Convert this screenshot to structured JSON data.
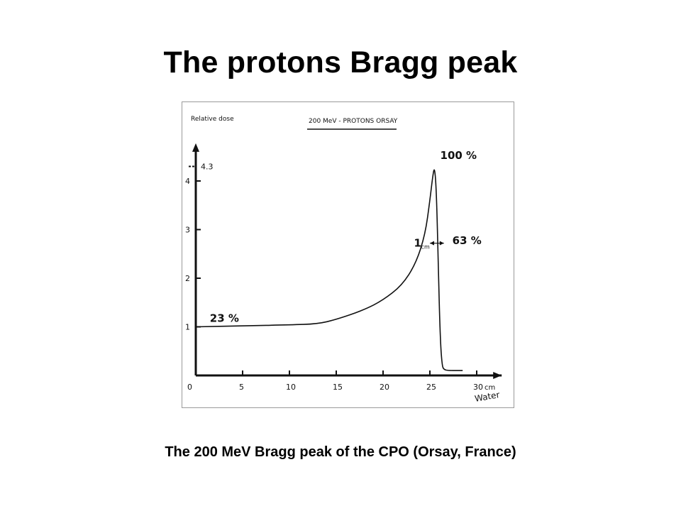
{
  "slide": {
    "title": "The protons Bragg peak",
    "caption": "The 200 MeV Bragg peak of the CPO (Orsay, France)"
  },
  "chart_data": {
    "type": "line",
    "title": "200 MeV - PROTONS ORSAY",
    "ylabel": "Relative dose",
    "xlabel": "cm Water",
    "x_unit": "cm",
    "x_name": "Water",
    "xlim": [
      0,
      31
    ],
    "ylim": [
      0,
      4.6
    ],
    "x_ticks": [
      0,
      5,
      10,
      15,
      20,
      25,
      30
    ],
    "y_ticks": [
      1,
      2,
      3,
      4
    ],
    "y_top_marker": "4.3",
    "series": [
      {
        "x": [
          0,
          5,
          10,
          13,
          15,
          18,
          20,
          22,
          23.5,
          24.5,
          25.0,
          25.3,
          25.5,
          25.7,
          25.9,
          26.1,
          26.3,
          26.5,
          27,
          28.5
        ],
        "y": [
          1.0,
          1.02,
          1.04,
          1.06,
          1.15,
          1.35,
          1.55,
          1.85,
          2.3,
          2.9,
          3.6,
          4.1,
          4.3,
          3.8,
          2.2,
          0.8,
          0.2,
          0.12,
          0.1,
          0.1
        ]
      }
    ],
    "annotations": [
      {
        "text": "23 %",
        "x": 1.5,
        "y": 1.1
      },
      {
        "text": "100 %",
        "x": 26.1,
        "y": 4.45
      },
      {
        "text": "63 %",
        "x": 27.4,
        "y": 2.7
      },
      {
        "text": "1",
        "sub": "cm",
        "x": 23.3,
        "y": 2.65
      }
    ],
    "grid": false,
    "legend": "none"
  }
}
